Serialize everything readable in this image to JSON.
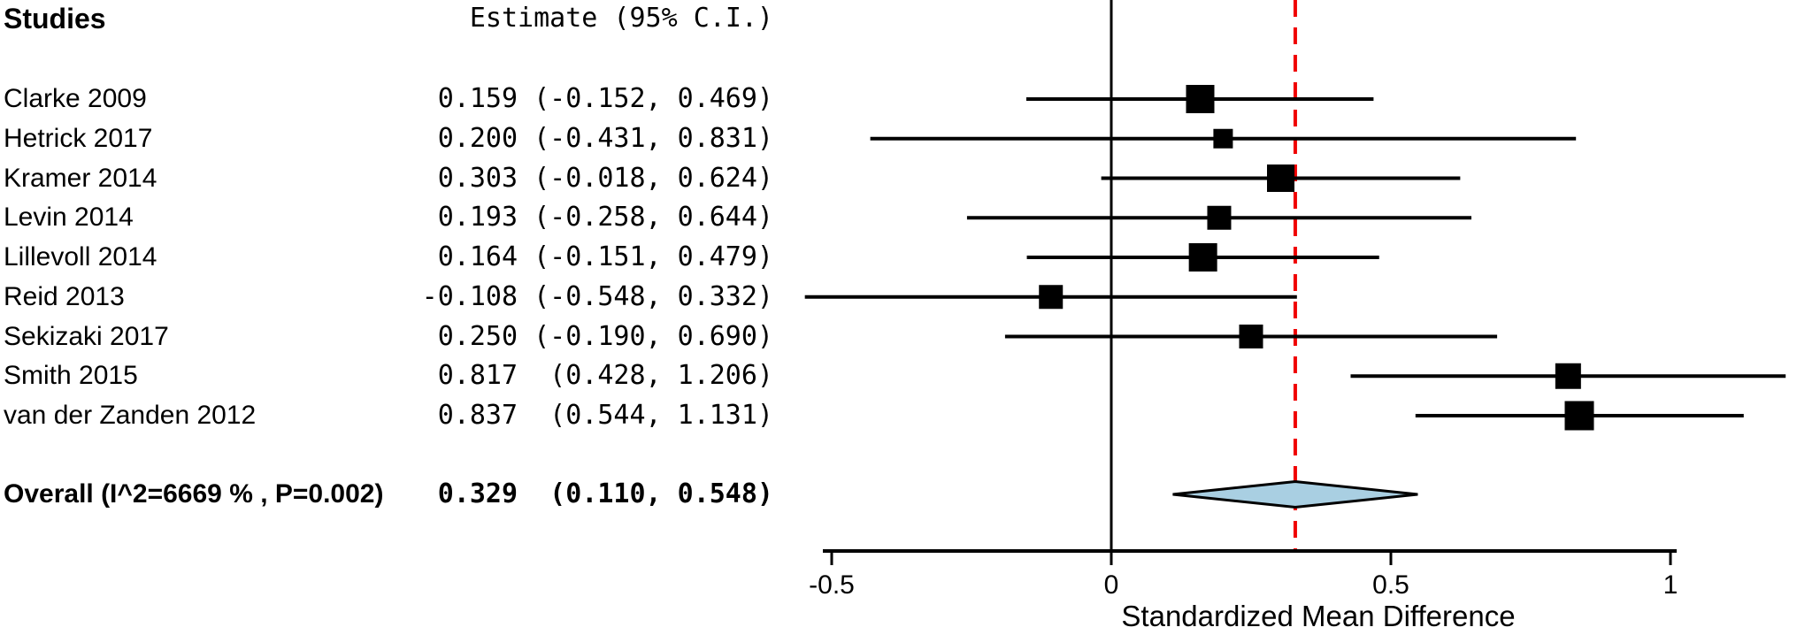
{
  "chart_data": {
    "type": "forest",
    "columns": {
      "studies_header": "Studies",
      "estimate_header": "Estimate (95% C.I.)"
    },
    "studies": [
      {
        "label": "Clarke 2009",
        "estimate_text": "0.159 (-0.152, 0.469)",
        "estimate": 0.159,
        "lower": -0.152,
        "upper": 0.469
      },
      {
        "label": "Hetrick 2017",
        "estimate_text": "0.200 (-0.431, 0.831)",
        "estimate": 0.2,
        "lower": -0.431,
        "upper": 0.831
      },
      {
        "label": "Kramer 2014",
        "estimate_text": "0.303 (-0.018, 0.624)",
        "estimate": 0.303,
        "lower": -0.018,
        "upper": 0.624
      },
      {
        "label": "Levin 2014",
        "estimate_text": "0.193 (-0.258, 0.644)",
        "estimate": 0.193,
        "lower": -0.258,
        "upper": 0.644
      },
      {
        "label": "Lillevoll 2014",
        "estimate_text": "0.164 (-0.151, 0.479)",
        "estimate": 0.164,
        "lower": -0.151,
        "upper": 0.479
      },
      {
        "label": "Reid 2013",
        "estimate_text": "-0.108 (-0.548, 0.332)",
        "estimate": -0.108,
        "lower": -0.548,
        "upper": 0.332
      },
      {
        "label": "Sekizaki 2017",
        "estimate_text": "0.250 (-0.190, 0.690)",
        "estimate": 0.25,
        "lower": -0.19,
        "upper": 0.69
      },
      {
        "label": "Smith 2015",
        "estimate_text": "0.817  (0.428, 1.206)",
        "estimate": 0.817,
        "lower": 0.428,
        "upper": 1.206
      },
      {
        "label": "van der Zanden 2012",
        "estimate_text": "0.837  (0.544, 1.131)",
        "estimate": 0.837,
        "lower": 0.544,
        "upper": 1.131
      }
    ],
    "overall": {
      "label": "Overall (I^2=6669 % , P=0.002)",
      "estimate_text": "0.329  (0.110, 0.548)",
      "estimate": 0.329,
      "lower": 0.11,
      "upper": 0.548
    },
    "xlabel": "Standardized Mean Difference",
    "x_ticks": [
      {
        "value": -0.5,
        "label": "-0.5"
      },
      {
        "value": 0,
        "label": "0"
      },
      {
        "value": 0.5,
        "label": "0.5"
      },
      {
        "value": 1,
        "label": "1"
      }
    ],
    "x_range": [
      -0.5,
      1
    ],
    "reference_line": {
      "value": 0,
      "color": "#000000",
      "style": "solid"
    },
    "overall_line": {
      "value": 0.329,
      "color": "#f00000",
      "style": "dashed"
    },
    "marker_color": "#000000",
    "ci_line_color": "#000000",
    "diamond": {
      "fill": "#a9cfe2",
      "stroke": "#000000"
    },
    "legend": null,
    "grid": false
  }
}
